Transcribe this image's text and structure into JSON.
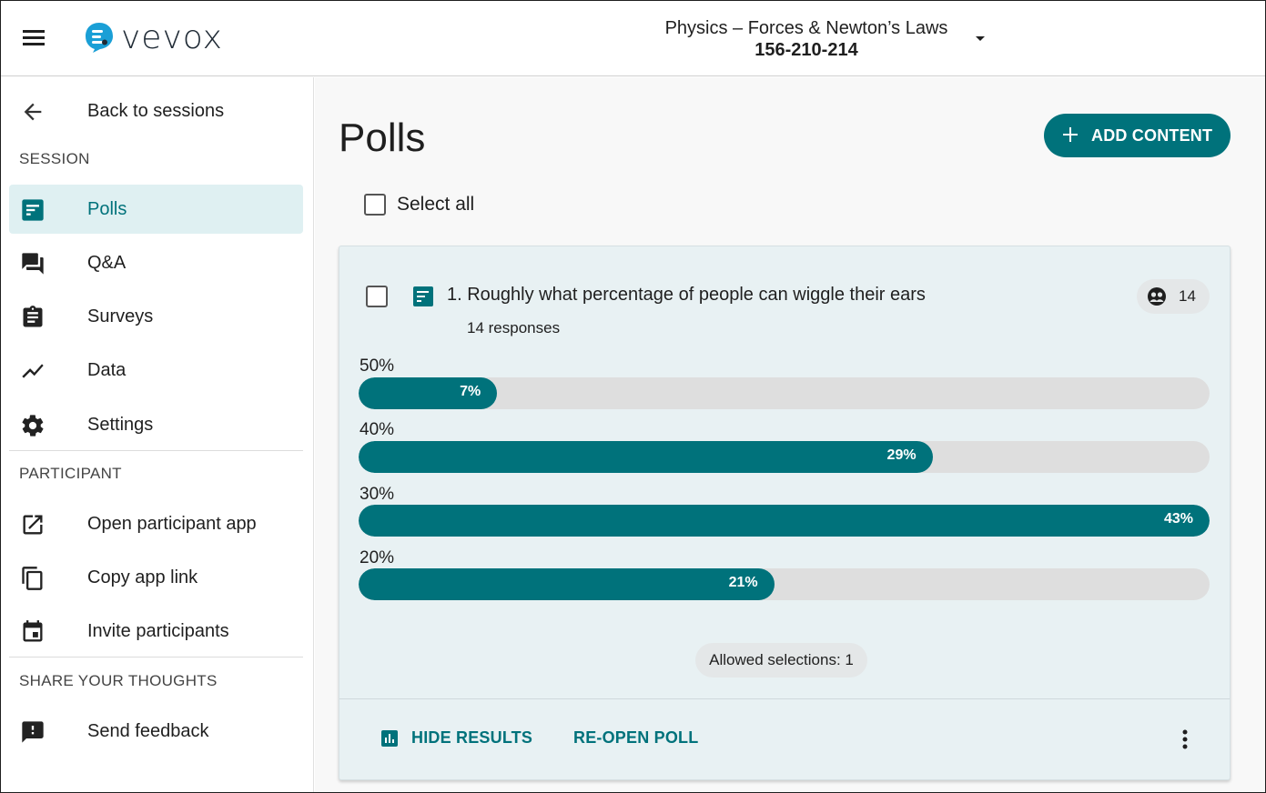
{
  "brand": {
    "name": "vevox",
    "accent": "#00727b"
  },
  "header": {
    "session_name": "Physics – Forces & Newton’s Laws",
    "session_code": "156-210-214"
  },
  "sidebar": {
    "back_label": "Back to sessions",
    "section_session": "SESSION",
    "session_items": [
      {
        "label": "Polls",
        "icon": "poll-icon",
        "active": true
      },
      {
        "label": "Q&A",
        "icon": "forum-icon"
      },
      {
        "label": "Surveys",
        "icon": "clipboard-icon"
      },
      {
        "label": "Data",
        "icon": "trend-icon"
      },
      {
        "label": "Settings",
        "icon": "gear-icon"
      }
    ],
    "section_participant": "PARTICIPANT",
    "participant_items": [
      {
        "label": "Open participant app",
        "icon": "open-external-icon"
      },
      {
        "label": "Copy app link",
        "icon": "copy-icon"
      },
      {
        "label": "Invite participants",
        "icon": "calendar-icon"
      }
    ],
    "section_feedback": "SHARE YOUR THOUGHTS",
    "feedback_items": [
      {
        "label": "Send feedback",
        "icon": "feedback-icon"
      }
    ]
  },
  "main": {
    "title": "Polls",
    "add_content_label": "ADD CONTENT",
    "select_all_label": "Select all"
  },
  "poll": {
    "title": "1. Roughly what percentage of people can wiggle their ears",
    "responses": "14 responses",
    "participants": "14",
    "options": [
      {
        "label": "50%",
        "percent": 7,
        "percent_label": "7%"
      },
      {
        "label": "40%",
        "percent": 29,
        "percent_label": "29%"
      },
      {
        "label": "30%",
        "percent": 43,
        "percent_label": "43%"
      },
      {
        "label": "20%",
        "percent": 21,
        "percent_label": "21%"
      }
    ],
    "allowed_selections": "Allowed selections: 1",
    "hide_results_label": "HIDE RESULTS",
    "reopen_label": "RE-OPEN POLL"
  }
}
